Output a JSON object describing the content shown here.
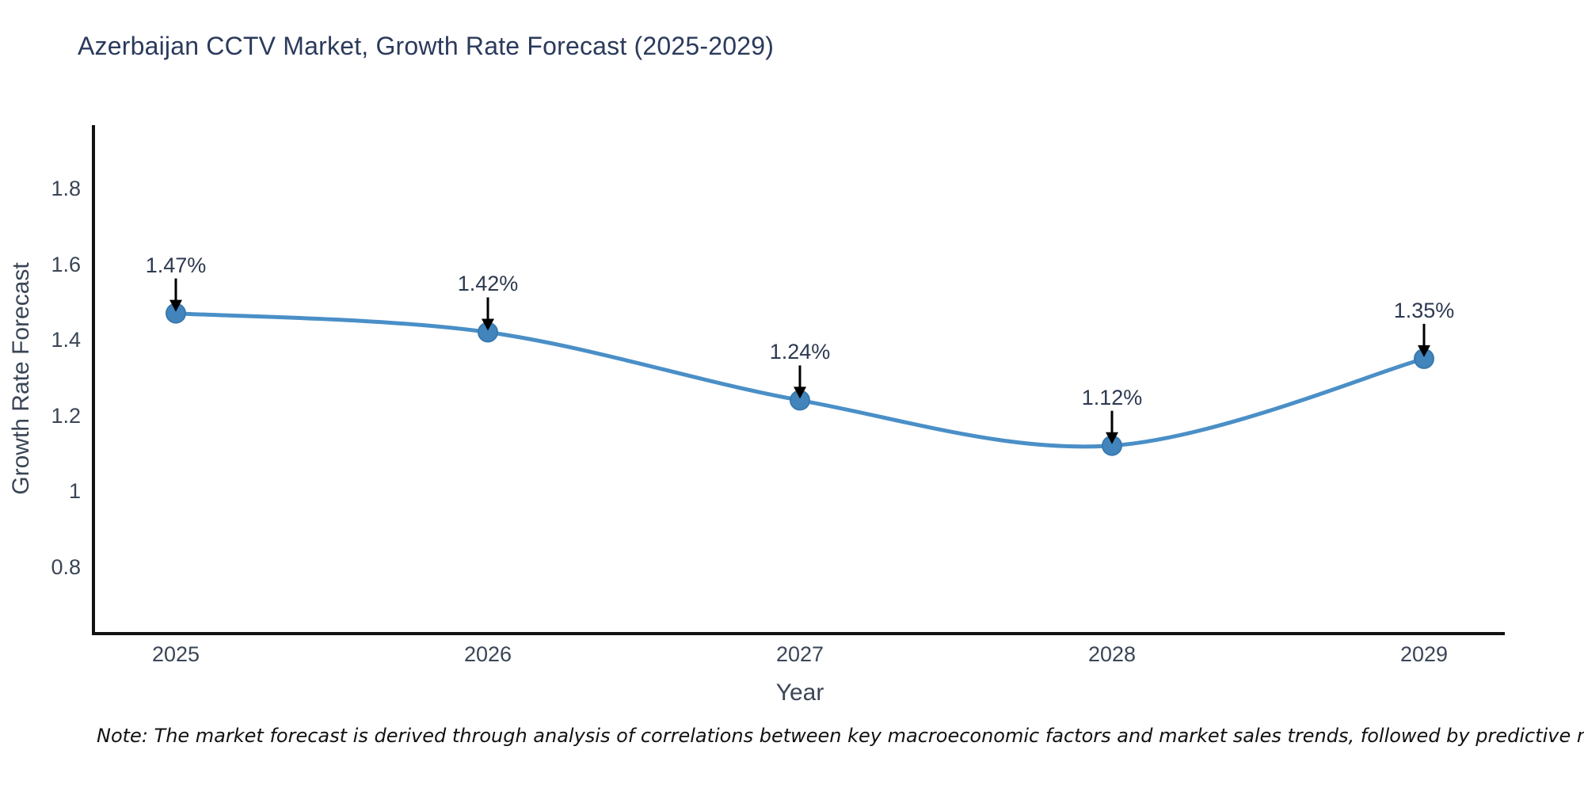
{
  "chart": {
    "title": "Azerbaijan CCTV Market, Growth Rate Forecast (2025-2029)",
    "note": "Note: The market forecast is derived through analysis of correlations between key macroeconomic factors and market sales trends, followed by predictive modeling to project future sales"
  },
  "chart_data": {
    "type": "line",
    "title": "Azerbaijan CCTV Market, Growth Rate Forecast (2025-2029)",
    "xlabel": "Year",
    "ylabel": "Growth Rate Forecast",
    "categories": [
      "2025",
      "2026",
      "2027",
      "2028",
      "2029"
    ],
    "x": [
      2025,
      2026,
      2027,
      2028,
      2029
    ],
    "values": [
      1.47,
      1.42,
      1.24,
      1.12,
      1.35
    ],
    "point_labels": [
      "1.47%",
      "1.42%",
      "1.24%",
      "1.12%",
      "1.35%"
    ],
    "yticks": [
      1.8,
      1.6,
      1.4,
      1.2,
      1,
      0.8
    ],
    "ytick_labels": [
      "1.8",
      "1.6",
      "1.4",
      "1.2",
      "1",
      "0.8"
    ],
    "ylim": [
      0.62,
      1.95
    ],
    "grid": false,
    "legend_position": "none",
    "smooth": true,
    "line_color": "#4a8fc7",
    "marker_color": "#4285bd",
    "marker_edge_color": "#3a79ae",
    "axis_color": "#111111",
    "annotation_arrow_color": "#000000",
    "note": "Note: The market forecast is derived through analysis of correlations between key macroeconomic factors and market sales trends, followed by predictive modeling to project future sales"
  }
}
